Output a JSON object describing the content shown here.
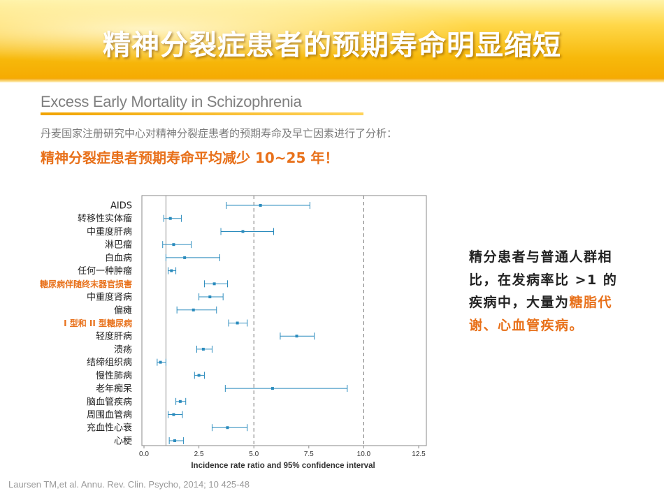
{
  "header": {
    "title": "精神分裂症患者的预期寿命明显缩短"
  },
  "section": {
    "subtitle": "Excess Early Mortality in Schizophrenia",
    "intro": "丹麦国家注册研究中心对精神分裂症患者的预期寿命及早亡因素进行了分析：",
    "headline": "精神分裂症患者预期寿命平均减少 10~25 年！"
  },
  "side_note": {
    "part1": "精分患者与普通人群相比，在发病率比 >1 的疾病中，大量为",
    "highlight": "糖脂代谢、心血管疾病。"
  },
  "citation": "Laursen TM,et al. Annu. Rev. Clin. Psycho, 2014; 10 425-48",
  "colors": {
    "accent_orange": "#e8711b",
    "marker_blue": "#2a8bbd",
    "banner_yellow": "#f7b90b"
  },
  "chart_data": {
    "type": "forest",
    "xlabel": "Incidence rate ratio and 95% confidence interval",
    "xlim": [
      0,
      12.5
    ],
    "xticks": [
      "0.0",
      "2.5",
      "5.0",
      "7.5",
      "10.0",
      "12.5"
    ],
    "reference_lines": [
      1,
      5,
      10
    ],
    "rows": [
      {
        "label": "AIDS",
        "irr": 5.3,
        "lo": 3.75,
        "hi": 7.55,
        "highlight": false
      },
      {
        "label": "转移性实体瘤",
        "irr": 1.2,
        "lo": 0.9,
        "hi": 1.7,
        "highlight": false
      },
      {
        "label": "中重度肝病",
        "irr": 4.5,
        "lo": 3.5,
        "hi": 5.9,
        "highlight": false
      },
      {
        "label": "淋巴瘤",
        "irr": 1.35,
        "lo": 0.85,
        "hi": 2.15,
        "highlight": false
      },
      {
        "label": "白血病",
        "irr": 1.85,
        "lo": 1.0,
        "hi": 3.45,
        "highlight": false
      },
      {
        "label": "任何一种肿瘤",
        "irr": 1.25,
        "lo": 1.1,
        "hi": 1.45,
        "highlight": false
      },
      {
        "label": "糖尿病伴随终末器官损害",
        "irr": 3.2,
        "lo": 2.75,
        "hi": 3.8,
        "highlight": true
      },
      {
        "label": "中重度肾病",
        "irr": 3.0,
        "lo": 2.5,
        "hi": 3.6,
        "highlight": false
      },
      {
        "label": "偏瘫",
        "irr": 2.25,
        "lo": 1.5,
        "hi": 3.3,
        "highlight": false
      },
      {
        "label": "I 型和 II 型糖尿病",
        "irr": 4.25,
        "lo": 3.85,
        "hi": 4.7,
        "highlight": true
      },
      {
        "label": "轻度肝病",
        "irr": 6.95,
        "lo": 6.2,
        "hi": 7.75,
        "highlight": false
      },
      {
        "label": "溃疡",
        "irr": 2.7,
        "lo": 2.4,
        "hi": 3.1,
        "highlight": false
      },
      {
        "label": "结缔组织病",
        "irr": 0.75,
        "lo": 0.6,
        "hi": 1.0,
        "highlight": false
      },
      {
        "label": "慢性肺病",
        "irr": 2.5,
        "lo": 2.3,
        "hi": 2.75,
        "highlight": false
      },
      {
        "label": "老年痴呆",
        "irr": 5.85,
        "lo": 3.7,
        "hi": 9.25,
        "highlight": false
      },
      {
        "label": "脑血管疾病",
        "irr": 1.65,
        "lo": 1.45,
        "hi": 1.9,
        "highlight": false
      },
      {
        "label": "周围血管病",
        "irr": 1.35,
        "lo": 1.1,
        "hi": 1.75,
        "highlight": false
      },
      {
        "label": "充血性心衰",
        "irr": 3.8,
        "lo": 3.1,
        "hi": 4.7,
        "highlight": false
      },
      {
        "label": "心梗",
        "irr": 1.4,
        "lo": 1.15,
        "hi": 1.8,
        "highlight": false
      }
    ]
  }
}
